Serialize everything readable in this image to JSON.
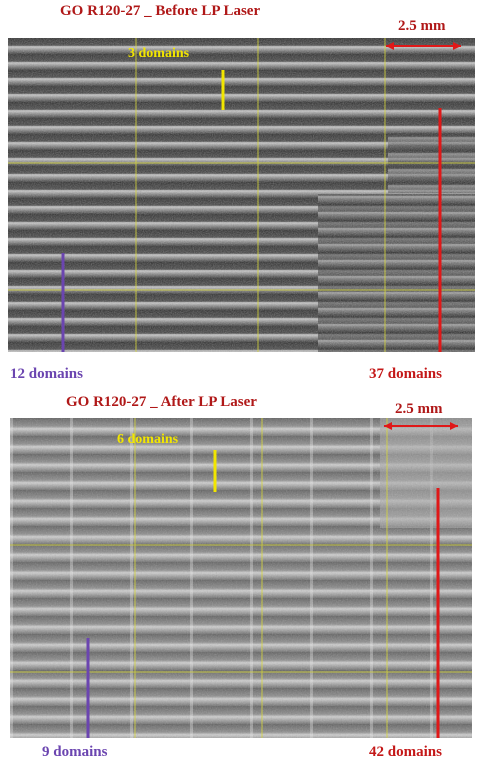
{
  "top": {
    "title": "GO R120-27 _ Before LP Laser",
    "scale_label": "2.5 mm",
    "annotation_center": "3 domains",
    "annotation_left": "12 domains",
    "annotation_right": "37 domains"
  },
  "bottom": {
    "title": "GO R120-27 _ After LP Laser",
    "scale_label": "2.5 mm",
    "annotation_center": "6 domains",
    "annotation_left": "9 domains",
    "annotation_right": "42 domains"
  },
  "colors": {
    "title": "#b01818",
    "purple": "#6b45b0",
    "red": "#c41818",
    "yellow": "#f2e600",
    "grid": "#d8d83a"
  }
}
